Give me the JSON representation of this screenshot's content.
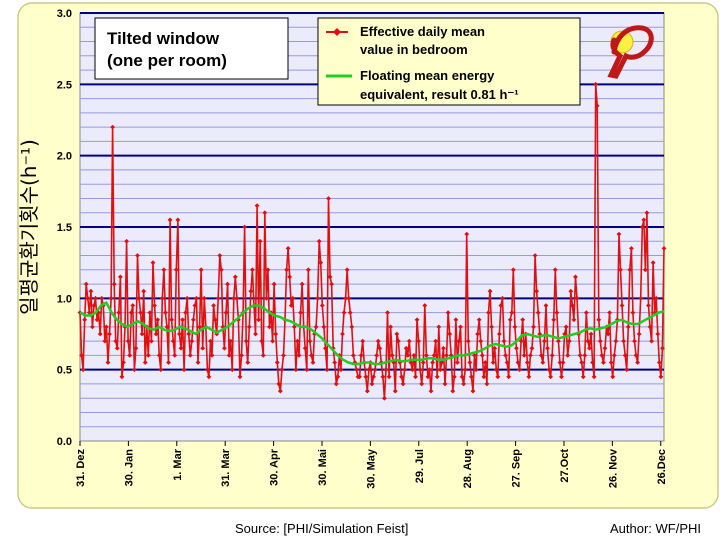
{
  "chart_data": {
    "type": "line",
    "title": "",
    "ylabel": "일평균환기횟수(h⁻¹)",
    "ylim": [
      0,
      3.0
    ],
    "y_ticks": [
      "0.0",
      "0.5",
      "1.0",
      "1.5",
      "2.0",
      "2.5",
      "3.0"
    ],
    "y_tick_values": [
      0,
      0.5,
      1.0,
      1.5,
      2.0,
      2.5,
      3.0
    ],
    "y_minor_step": 0.1,
    "grid": true,
    "legend_position": "top-center",
    "annotation_box": "Tilted window (one per room)",
    "x_ticks": [
      "31. Dez",
      "30. Jan",
      "1. Mar",
      "31. Mar",
      "30. Apr",
      "30. Mai",
      "30. May",
      "29. Jul",
      "28. Aug",
      "27. Sep",
      "27.Oct",
      "26. Nov",
      "26.Dec"
    ],
    "x_tick_days": [
      0,
      30,
      60,
      90,
      120,
      150,
      180,
      210,
      240,
      270,
      300,
      330,
      360
    ],
    "x_range_days": [
      0,
      362
    ],
    "series": [
      {
        "name": "Effective daily mean value in bedroom",
        "color": "#e01010",
        "marker": "diamond",
        "values": [
          0.9,
          0.6,
          0.5,
          0.85,
          1.1,
          1.0,
          0.9,
          1.05,
          0.8,
          0.95,
          1.0,
          0.85,
          0.9,
          0.75,
          1.0,
          0.95,
          0.7,
          0.8,
          0.55,
          0.75,
          1.0,
          2.2,
          1.1,
          0.7,
          0.65,
          0.9,
          1.15,
          0.45,
          0.55,
          0.8,
          1.4,
          0.7,
          0.6,
          0.9,
          0.95,
          0.5,
          0.65,
          1.3,
          1.0,
          0.9,
          0.75,
          1.05,
          0.55,
          0.8,
          0.6,
          0.9,
          0.7,
          1.25,
          0.95,
          0.75,
          0.85,
          0.6,
          0.5,
          1.0,
          1.2,
          0.9,
          0.8,
          0.55,
          1.55,
          0.85,
          0.7,
          0.6,
          1.2,
          1.55,
          0.75,
          0.65,
          0.85,
          0.5,
          0.9,
          1.0,
          0.75,
          0.6,
          0.7,
          0.85,
          0.95,
          1.0,
          0.55,
          0.8,
          1.2,
          0.65,
          1.0,
          0.8,
          0.5,
          0.45,
          0.7,
          0.6,
          0.95,
          0.85,
          0.75,
          1.0,
          1.3,
          1.2,
          0.8,
          0.65,
          0.9,
          1.1,
          0.6,
          0.7,
          0.5,
          1.0,
          1.15,
          1.0,
          0.85,
          0.45,
          0.6,
          0.9,
          1.5,
          0.7,
          0.55,
          0.8,
          1.05,
          1.2,
          0.95,
          0.75,
          1.65,
          0.85,
          1.4,
          0.7,
          0.6,
          1.6,
          1.0,
          1.2,
          0.8,
          0.9,
          0.7,
          1.1,
          0.75,
          0.55,
          0.4,
          0.35,
          0.5,
          0.6,
          0.85,
          1.2,
          1.35,
          1.15,
          0.95,
          1.0,
          0.8,
          0.5,
          0.7,
          0.6,
          0.9,
          1.1,
          0.8,
          0.65,
          0.5,
          1.2,
          0.7,
          0.6,
          0.55,
          0.75,
          0.8,
          1.0,
          1.4,
          1.25,
          0.95,
          0.8,
          0.65,
          0.5,
          1.7,
          1.15,
          1.1,
          0.65,
          0.55,
          0.4,
          0.45,
          0.6,
          0.5,
          0.75,
          0.9,
          1.0,
          1.2,
          1.0,
          0.9,
          0.8,
          0.6,
          0.55,
          0.5,
          0.45,
          0.45,
          0.6,
          0.7,
          0.55,
          0.45,
          0.35,
          0.5,
          0.55,
          0.4,
          0.45,
          0.5,
          0.6,
          0.7,
          0.65,
          0.55,
          0.45,
          0.3,
          0.5,
          0.9,
          0.45,
          0.8,
          0.6,
          0.55,
          0.35,
          0.75,
          0.7,
          0.55,
          0.45,
          0.4,
          0.5,
          0.65,
          0.6,
          0.7,
          0.55,
          0.5,
          0.6,
          0.45,
          0.85,
          0.7,
          0.5,
          0.4,
          0.55,
          0.95,
          0.6,
          0.45,
          0.5,
          0.35,
          0.55,
          0.6,
          0.7,
          0.45,
          0.8,
          0.5,
          0.55,
          0.65,
          0.4,
          0.6,
          0.9,
          0.75,
          0.6,
          0.35,
          0.45,
          0.85,
          0.55,
          0.7,
          0.8,
          0.45,
          0.4,
          0.5,
          1.45,
          0.7,
          0.55,
          0.45,
          0.35,
          0.6,
          0.5,
          0.75,
          0.85,
          0.7,
          0.6,
          0.45,
          0.55,
          0.4,
          0.9,
          1.05,
          0.8,
          0.55,
          0.65,
          0.5,
          0.45,
          0.75,
          0.95,
          1.0,
          0.7,
          0.6,
          0.55,
          0.45,
          0.85,
          0.9,
          1.2,
          0.8,
          0.65,
          0.55,
          0.5,
          0.7,
          0.85,
          0.6,
          0.75,
          0.55,
          0.45,
          0.6,
          0.65,
          0.8,
          1.3,
          1.05,
          0.9,
          0.75,
          0.6,
          0.55,
          0.7,
          0.95,
          0.65,
          0.5,
          0.45,
          0.6,
          0.85,
          1.2,
          0.9,
          0.7,
          0.55,
          0.45,
          0.55,
          0.75,
          0.8,
          0.6,
          0.7,
          1.05,
          0.95,
          0.85,
          1.15,
          1.0,
          0.75,
          0.6,
          0.55,
          0.45,
          0.6,
          0.9,
          0.7,
          0.65,
          0.75,
          0.55,
          0.45,
          2.5,
          2.35,
          0.85,
          0.7,
          0.6,
          0.55,
          0.65,
          0.8,
          0.75,
          0.9,
          0.55,
          0.45,
          0.6,
          0.7,
          0.85,
          1.45,
          1.2,
          0.95,
          0.7,
          0.6,
          0.5,
          0.8,
          1.2,
          1.35,
          0.9,
          0.7,
          0.6,
          0.55,
          0.75,
          1.0,
          1.5,
          1.55,
          1.2,
          1.6,
          0.95,
          0.8,
          0.7,
          1.25,
          0.9,
          1.0,
          0.75,
          0.55,
          0.45,
          0.65,
          1.35
        ]
      },
      {
        "name": "Floating mean energy equivalent, result 0.81 h⁻¹",
        "color": "#22cc22",
        "values": [
          0.9,
          0.88,
          0.88,
          0.9,
          0.95,
          0.97,
          0.9,
          0.85,
          0.82,
          0.8,
          0.82,
          0.84,
          0.82,
          0.79,
          0.78,
          0.8,
          0.78,
          0.77,
          0.78,
          0.8,
          0.79,
          0.77,
          0.75,
          0.78,
          0.8,
          0.78,
          0.76,
          0.78,
          0.8,
          0.83,
          0.86,
          0.9,
          0.93,
          0.95,
          0.95,
          0.93,
          0.9,
          0.88,
          0.87,
          0.85,
          0.84,
          0.82,
          0.8,
          0.8,
          0.78,
          0.75,
          0.72,
          0.68,
          0.64,
          0.6,
          0.57,
          0.55,
          0.54,
          0.54,
          0.55,
          0.55,
          0.54,
          0.54,
          0.55,
          0.56,
          0.57,
          0.56,
          0.56,
          0.57,
          0.57,
          0.57,
          0.58,
          0.58,
          0.57,
          0.57,
          0.58,
          0.59,
          0.6,
          0.6,
          0.61,
          0.62,
          0.63,
          0.65,
          0.67,
          0.68,
          0.67,
          0.66,
          0.67,
          0.7,
          0.74,
          0.75,
          0.74,
          0.73,
          0.74,
          0.74,
          0.73,
          0.72,
          0.73,
          0.74,
          0.75,
          0.76,
          0.78,
          0.79,
          0.78,
          0.79,
          0.8,
          0.82,
          0.84,
          0.85,
          0.83,
          0.82,
          0.82,
          0.84,
          0.86,
          0.88,
          0.9,
          0.91
        ]
      }
    ]
  },
  "footer": {
    "source": "Source: [PHI/Simulation Feist]",
    "author": "Author: WF/PHI"
  },
  "colors": {
    "outer_background": "#ffffcc",
    "plot_background": "#ebebfb",
    "major_grid": "#000080",
    "minor_grid": "#9a9ad8",
    "border": "#cccc88"
  }
}
